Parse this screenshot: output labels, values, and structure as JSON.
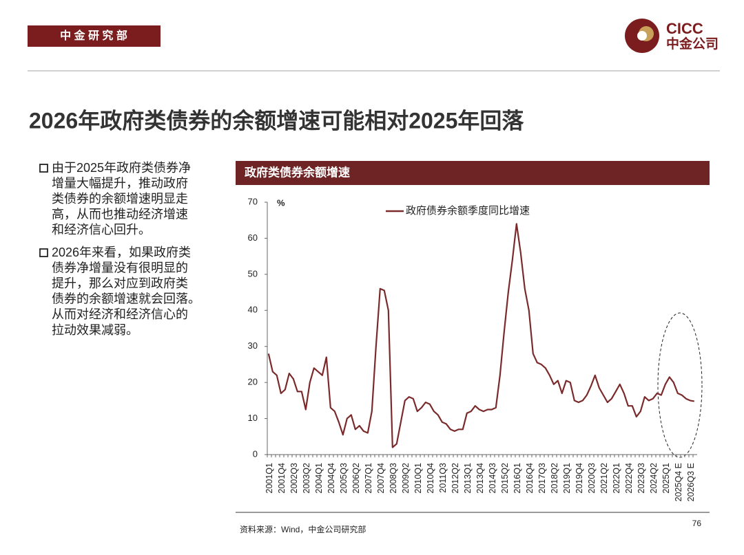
{
  "header": {
    "dept": "中 金 研 究 部",
    "logo_en": "CICC",
    "logo_cn": "中金公司"
  },
  "title": "2026年政府类债券的余额增速可能相对2025年回落",
  "bullets": [
    {
      "lines": [
        "由于2025年政府类债券净",
        "增量大幅提升，推动政府",
        "类债券的余额增速明显走",
        "高，从而也推动经济增速",
        "和经济信心回升。"
      ]
    },
    {
      "lines": [
        "2026年来看，如果政府类",
        "债券净增量没有很明显的",
        "提升，那么对应到政府类",
        "债券的余额增速就会回落。",
        "从而对经济和经济信心的",
        "拉动效果减弱。"
      ]
    }
  ],
  "source": "资料来源：Wind，中金公司研究部",
  "page_number": "76",
  "chart_data": {
    "type": "line",
    "title": "政府类债券余额增速",
    "y_label": "%",
    "categories": [
      "2001Q1",
      null,
      null,
      "2001Q4",
      null,
      null,
      "2002Q3",
      null,
      null,
      "2003Q2",
      null,
      null,
      "2004Q1",
      null,
      null,
      "2004Q4",
      null,
      null,
      "2005Q3",
      null,
      null,
      "2006Q2",
      null,
      null,
      "2007Q1",
      null,
      null,
      "2007Q4",
      null,
      null,
      "2008Q3",
      null,
      null,
      "2009Q2",
      null,
      null,
      "2010Q1",
      null,
      null,
      "2010Q4",
      null,
      null,
      "2011Q3",
      null,
      null,
      "2012Q2",
      null,
      null,
      "2013Q1",
      null,
      null,
      "2013Q4",
      null,
      null,
      "2014Q3",
      null,
      null,
      "2015Q2",
      null,
      null,
      "2016Q1",
      null,
      null,
      "2016Q4",
      null,
      null,
      "2017Q3",
      null,
      null,
      "2018Q2",
      null,
      null,
      "2019Q1",
      null,
      null,
      "2019Q4",
      null,
      null,
      "2020Q3",
      null,
      null,
      "2021Q2",
      null,
      null,
      "2022Q1",
      null,
      null,
      "2022Q4",
      null,
      null,
      "2023Q3",
      null,
      null,
      "2024Q2",
      null,
      null,
      "2025Q1",
      null,
      null,
      "2025Q4 E",
      null,
      null,
      "2026Q3 E",
      null
    ],
    "series": [
      {
        "name": "政府债券余额季度同比增速",
        "color": "#7a2a2a",
        "values": [
          28,
          23,
          22,
          17,
          18,
          22.5,
          21,
          17.5,
          17.5,
          12.5,
          20,
          24,
          23,
          22,
          27,
          13,
          12,
          9,
          5.5,
          10,
          11,
          7,
          8,
          6.5,
          6,
          12,
          30,
          46,
          45.5,
          40,
          2,
          3,
          9,
          15,
          16,
          15.5,
          12,
          13,
          14.5,
          14,
          12,
          11,
          9,
          8.5,
          7,
          6.5,
          7,
          7,
          11.5,
          12,
          13.5,
          12.5,
          12,
          12.5,
          12.5,
          13,
          22,
          34,
          45,
          54,
          64,
          56,
          46,
          40,
          28,
          25.5,
          25,
          24,
          22,
          19.5,
          20.5,
          17,
          20.5,
          20,
          15,
          14.5,
          15,
          16.5,
          19,
          22,
          18.5,
          16.5,
          14.5,
          15.5,
          17.5,
          19.5,
          17,
          13.5,
          13.5,
          10.5,
          12,
          16,
          15,
          15.5,
          17,
          16.5,
          19.5,
          21.5,
          20,
          17,
          16.5,
          15.5,
          15,
          14.8
        ]
      }
    ],
    "ylim": [
      0,
      70
    ],
    "yticks": [
      0,
      10,
      20,
      30,
      40,
      50,
      60,
      70
    ],
    "grid": false,
    "legend": "top"
  }
}
